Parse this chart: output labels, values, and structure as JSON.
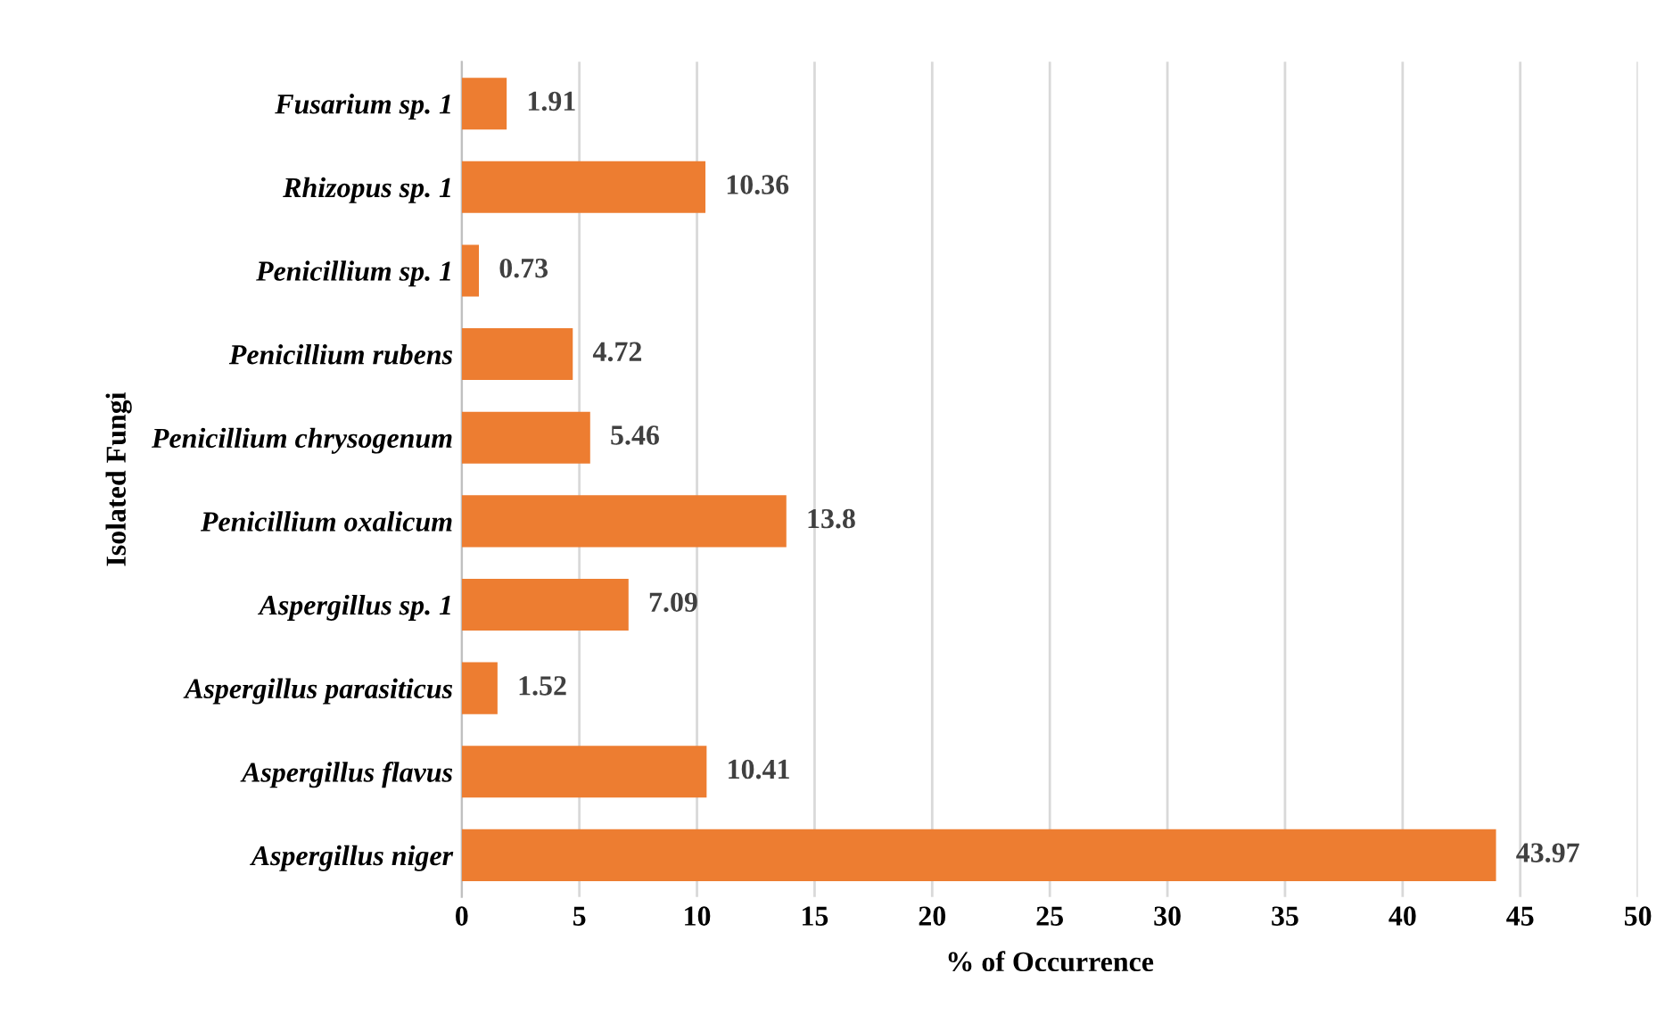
{
  "chart_data": {
    "type": "bar",
    "orientation": "horizontal",
    "xlabel": "% of Occurrence",
    "ylabel": "Isolated Fungi",
    "categories": [
      "Fusarium sp. 1",
      "Rhizopus sp. 1",
      "Penicillium sp. 1",
      "Penicillium rubens",
      "Penicillium chrysogenum",
      "Penicillium oxalicum",
      "Aspergillus sp. 1",
      "Aspergillus parasiticus",
      "Aspergillus flavus",
      "Aspergillus niger"
    ],
    "values": [
      1.91,
      10.36,
      0.73,
      4.72,
      5.46,
      13.8,
      7.09,
      1.52,
      10.41,
      43.97
    ],
    "color": "#ed7d31",
    "xlim": [
      0,
      50
    ],
    "xticks": [
      0,
      5,
      10,
      15,
      20,
      25,
      30,
      35,
      40,
      45,
      50
    ],
    "grid": "x",
    "data_labels": true
  }
}
